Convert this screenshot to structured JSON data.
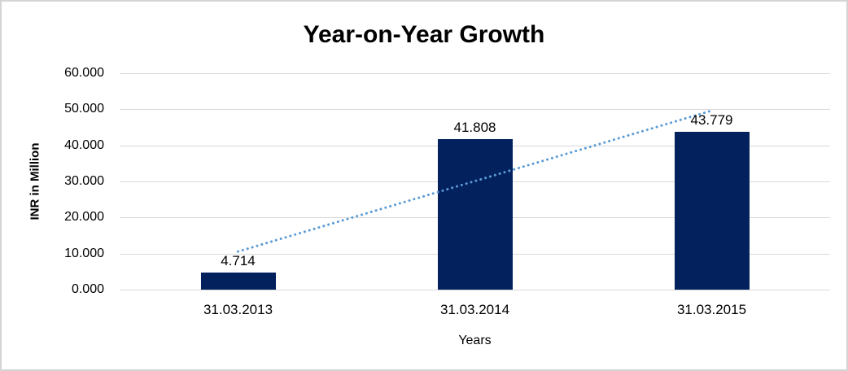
{
  "chart_data": {
    "type": "bar",
    "title": "Year-on-Year Growth",
    "xlabel": "Years",
    "ylabel": "INR in Million",
    "categories": [
      "31.03.2013",
      "31.03.2014",
      "31.03.2015"
    ],
    "values": [
      4.714,
      41.808,
      43.779
    ],
    "data_labels": [
      "4.714",
      "41.808",
      "43.779"
    ],
    "yticks": [
      "0.000",
      "10.000",
      "20.000",
      "30.000",
      "40.000",
      "50.000",
      "60.000"
    ],
    "ylim": [
      0,
      60
    ],
    "grid": true,
    "legend": "none",
    "bar_color": "#02215d",
    "gridline_color": "#d9d9d9",
    "trendline": {
      "type": "linear",
      "style": "dotted",
      "color": "#5b9bd5"
    }
  }
}
